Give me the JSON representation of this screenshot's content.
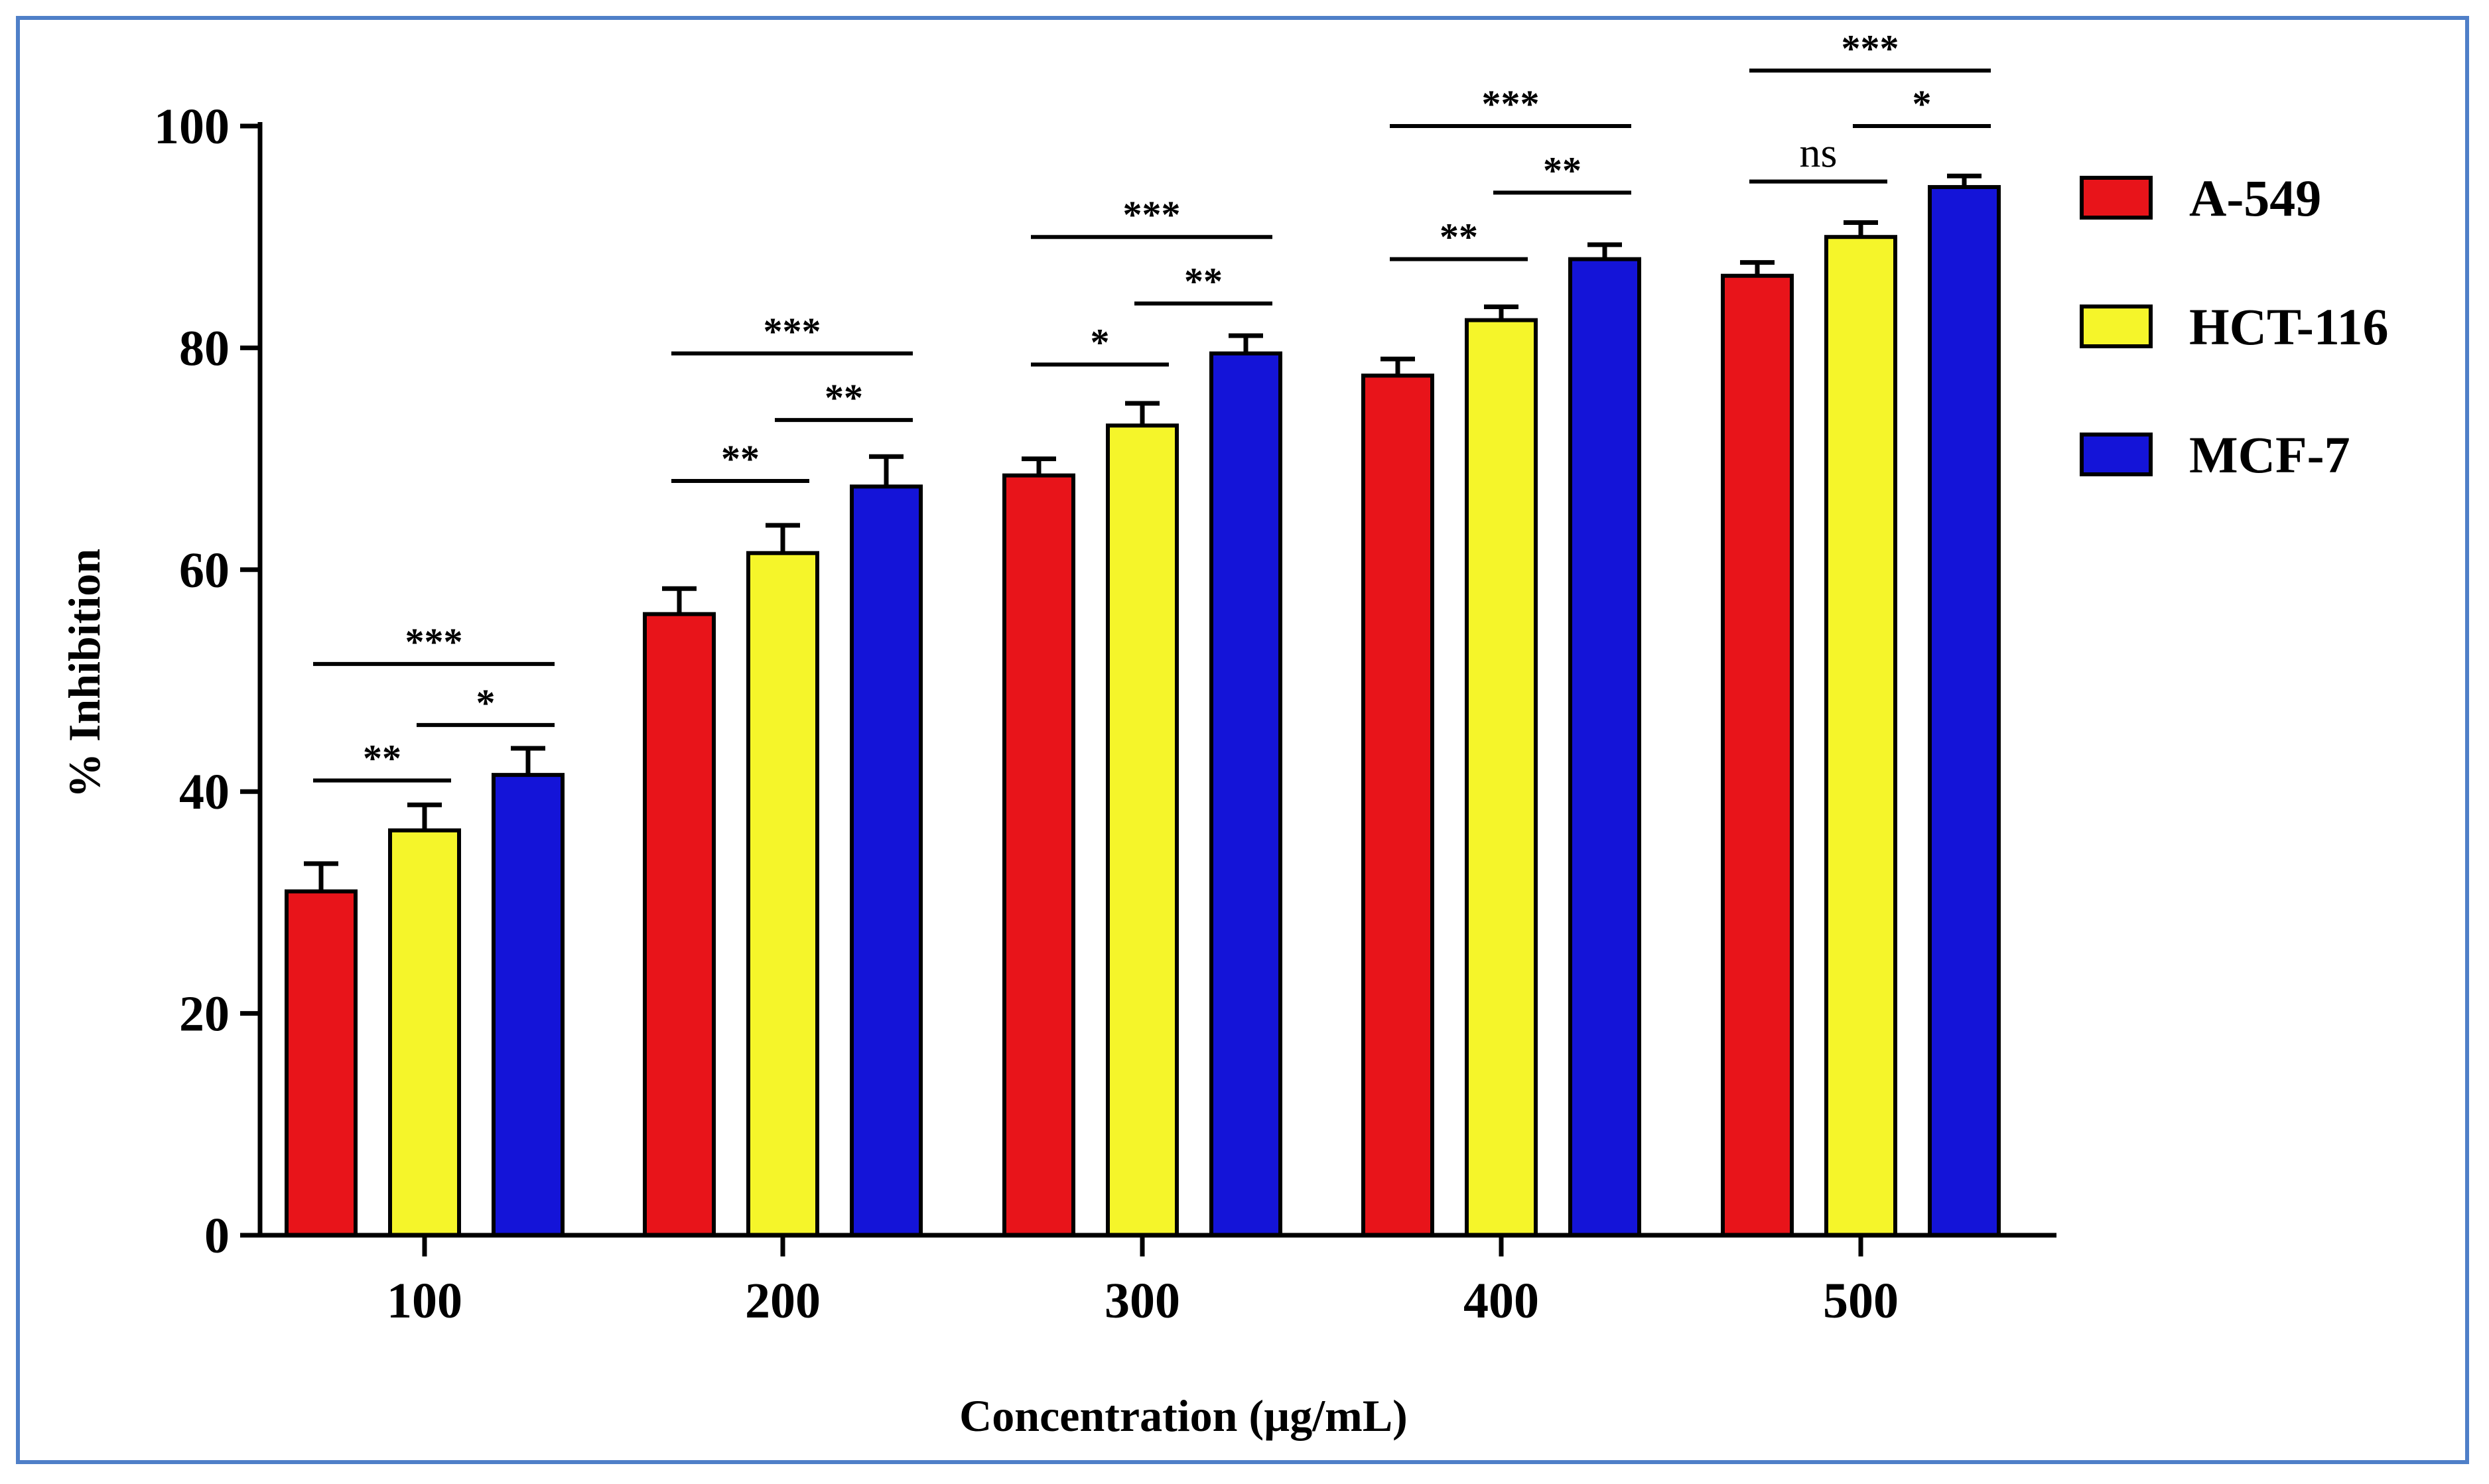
{
  "chart_data": {
    "type": "bar",
    "title": "",
    "xlabel": "Concentration (µg/mL)",
    "ylabel": "% Inhibition",
    "ylim": [
      0,
      100
    ],
    "yticks": [
      0,
      20,
      40,
      60,
      80,
      100
    ],
    "categories": [
      "100",
      "200",
      "300",
      "400",
      "500"
    ],
    "series": [
      {
        "name": "A-549",
        "color": "#e8141a",
        "values": [
          31,
          56,
          68.5,
          77.5,
          86.5
        ],
        "errors": [
          2.5,
          2.3,
          1.5,
          1.5,
          1.2
        ]
      },
      {
        "name": "HCT-116",
        "color": "#f5f52a",
        "values": [
          36.5,
          61.5,
          73,
          82.5,
          90
        ],
        "errors": [
          2.3,
          2.5,
          2.0,
          1.2,
          1.3
        ]
      },
      {
        "name": "MCF-7",
        "color": "#1414d8",
        "values": [
          41.5,
          67.5,
          79.5,
          88,
          94.5
        ],
        "errors": [
          2.4,
          2.7,
          1.6,
          1.3,
          1.0
        ]
      }
    ],
    "significance": [
      [
        {
          "from": 0,
          "to": 1,
          "label": "**",
          "y": 41
        },
        {
          "from": 1,
          "to": 2,
          "label": "*",
          "y": 46
        },
        {
          "from": 0,
          "to": 2,
          "label": "***",
          "y": 51.5
        }
      ],
      [
        {
          "from": 0,
          "to": 1,
          "label": "**",
          "y": 68
        },
        {
          "from": 1,
          "to": 2,
          "label": "**",
          "y": 73.5
        },
        {
          "from": 0,
          "to": 2,
          "label": "***",
          "y": 79.5
        }
      ],
      [
        {
          "from": 0,
          "to": 1,
          "label": "*",
          "y": 78.5
        },
        {
          "from": 1,
          "to": 2,
          "label": "**",
          "y": 84
        },
        {
          "from": 0,
          "to": 2,
          "label": "***",
          "y": 90
        }
      ],
      [
        {
          "from": 0,
          "to": 1,
          "label": "**",
          "y": 88
        },
        {
          "from": 1,
          "to": 2,
          "label": "**",
          "y": 94
        },
        {
          "from": 0,
          "to": 2,
          "label": "***",
          "y": 100
        }
      ],
      [
        {
          "from": 0,
          "to": 1,
          "label": "ns",
          "y": 95
        },
        {
          "from": 1,
          "to": 2,
          "label": "*",
          "y": 100
        },
        {
          "from": 0,
          "to": 2,
          "label": "***",
          "y": 105
        }
      ]
    ],
    "legend_position": "right"
  }
}
